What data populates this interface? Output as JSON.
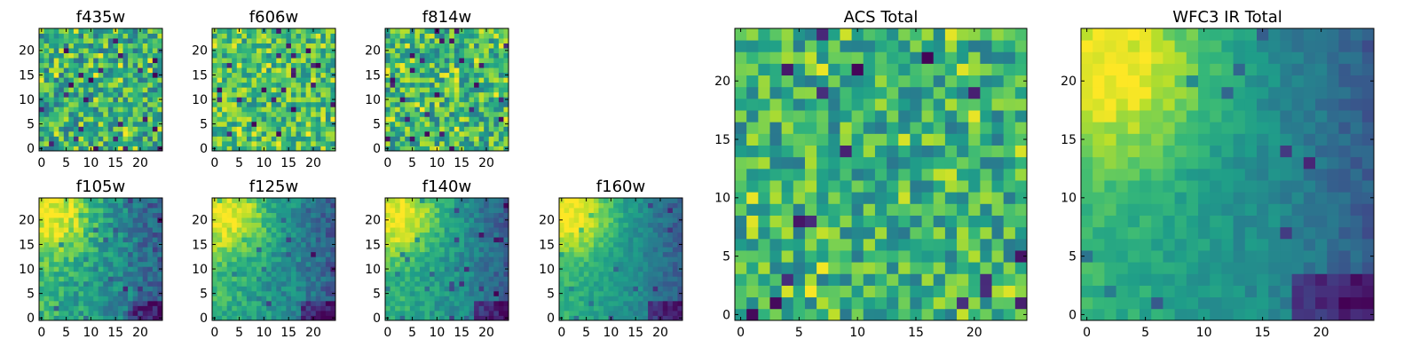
{
  "chart_data": [
    {
      "type": "heatmap",
      "title": "f435w",
      "xlim": [
        -0.5,
        24.5
      ],
      "ylim": [
        -0.5,
        24.5
      ],
      "xticks": [
        0,
        5,
        10,
        15,
        20
      ],
      "yticks": [
        0,
        5,
        10,
        15,
        20
      ],
      "xtick_labels": [
        "0",
        "5",
        "10",
        "15",
        "20"
      ],
      "ytick_labels": [
        "0",
        "5",
        "10",
        "15",
        "20"
      ],
      "grid_size": [
        25,
        25
      ],
      "colormap": "viridis",
      "pattern": "noise",
      "seed": 11,
      "mean": 0.62,
      "noise": 0.22
    },
    {
      "type": "heatmap",
      "title": "f606w",
      "xlim": [
        -0.5,
        24.5
      ],
      "ylim": [
        -0.5,
        24.5
      ],
      "xticks": [
        0,
        5,
        10,
        15,
        20
      ],
      "yticks": [
        0,
        5,
        10,
        15,
        20
      ],
      "xtick_labels": [
        "0",
        "5",
        "10",
        "15",
        "20"
      ],
      "ytick_labels": [
        "0",
        "5",
        "10",
        "15",
        "20"
      ],
      "grid_size": [
        25,
        25
      ],
      "colormap": "viridis",
      "pattern": "noise",
      "seed": 23,
      "mean": 0.7,
      "noise": 0.2
    },
    {
      "type": "heatmap",
      "title": "f814w",
      "xlim": [
        -0.5,
        24.5
      ],
      "ylim": [
        -0.5,
        24.5
      ],
      "xticks": [
        0,
        5,
        10,
        15,
        20
      ],
      "yticks": [
        0,
        5,
        10,
        15,
        20
      ],
      "xtick_labels": [
        "0",
        "5",
        "10",
        "15",
        "20"
      ],
      "ytick_labels": [
        "0",
        "5",
        "10",
        "15",
        "20"
      ],
      "grid_size": [
        25,
        25
      ],
      "colormap": "viridis",
      "pattern": "noise",
      "seed": 37,
      "mean": 0.66,
      "noise": 0.22
    },
    {
      "type": "heatmap",
      "title": "f105w",
      "xlim": [
        -0.5,
        24.5
      ],
      "ylim": [
        -0.5,
        24.5
      ],
      "xticks": [
        0,
        5,
        10,
        15,
        20
      ],
      "yticks": [
        0,
        5,
        10,
        15,
        20
      ],
      "xtick_labels": [
        "0",
        "5",
        "10",
        "15",
        "20"
      ],
      "ytick_labels": [
        "0",
        "5",
        "10",
        "15",
        "20"
      ],
      "grid_size": [
        25,
        25
      ],
      "colormap": "viridis",
      "pattern": "gradient",
      "seed": 41,
      "noise": 0.14
    },
    {
      "type": "heatmap",
      "title": "f125w",
      "xlim": [
        -0.5,
        24.5
      ],
      "ylim": [
        -0.5,
        24.5
      ],
      "xticks": [
        0,
        5,
        10,
        15,
        20
      ],
      "yticks": [
        0,
        5,
        10,
        15,
        20
      ],
      "xtick_labels": [
        "0",
        "5",
        "10",
        "15",
        "20"
      ],
      "ytick_labels": [
        "0",
        "5",
        "10",
        "15",
        "20"
      ],
      "grid_size": [
        25,
        25
      ],
      "colormap": "viridis",
      "pattern": "gradient",
      "seed": 53,
      "noise": 0.12
    },
    {
      "type": "heatmap",
      "title": "f140w",
      "xlim": [
        -0.5,
        24.5
      ],
      "ylim": [
        -0.5,
        24.5
      ],
      "xticks": [
        0,
        5,
        10,
        15,
        20
      ],
      "yticks": [
        0,
        5,
        10,
        15,
        20
      ],
      "xtick_labels": [
        "0",
        "5",
        "10",
        "15",
        "20"
      ],
      "ytick_labels": [
        "0",
        "5",
        "10",
        "15",
        "20"
      ],
      "grid_size": [
        25,
        25
      ],
      "colormap": "viridis",
      "pattern": "gradient",
      "seed": 67,
      "noise": 0.1
    },
    {
      "type": "heatmap",
      "title": "f160w",
      "xlim": [
        -0.5,
        24.5
      ],
      "ylim": [
        -0.5,
        24.5
      ],
      "xticks": [
        0,
        5,
        10,
        15,
        20
      ],
      "yticks": [
        0,
        5,
        10,
        15,
        20
      ],
      "xtick_labels": [
        "0",
        "5",
        "10",
        "15",
        "20"
      ],
      "ytick_labels": [
        "0",
        "5",
        "10",
        "15",
        "20"
      ],
      "grid_size": [
        25,
        25
      ],
      "colormap": "viridis",
      "pattern": "gradient",
      "seed": 79,
      "noise": 0.08
    },
    {
      "type": "heatmap",
      "title": "ACS Total",
      "xlim": [
        -0.5,
        24.5
      ],
      "ylim": [
        -0.5,
        24.5
      ],
      "xticks": [
        0,
        5,
        10,
        15,
        20
      ],
      "yticks": [
        0,
        5,
        10,
        15,
        20
      ],
      "xtick_labels": [
        "0",
        "5",
        "10",
        "15",
        "20"
      ],
      "ytick_labels": [
        "0",
        "5",
        "10",
        "15",
        "20"
      ],
      "grid_size": [
        25,
        25
      ],
      "colormap": "viridis",
      "pattern": "noise",
      "seed": 97,
      "mean": 0.64,
      "noise": 0.2
    },
    {
      "type": "heatmap",
      "title": "WFC3 IR Total",
      "xlim": [
        -0.5,
        24.5
      ],
      "ylim": [
        -0.5,
        24.5
      ],
      "xticks": [
        0,
        5,
        10,
        15,
        20
      ],
      "yticks": [
        0,
        5,
        10,
        15,
        20
      ],
      "xtick_labels": [
        "0",
        "5",
        "10",
        "15",
        "20"
      ],
      "ytick_labels": [
        "0",
        "5",
        "10",
        "15",
        "20"
      ],
      "grid_size": [
        25,
        25
      ],
      "colormap": "viridis",
      "pattern": "gradient",
      "seed": 113,
      "noise": 0.07
    }
  ]
}
